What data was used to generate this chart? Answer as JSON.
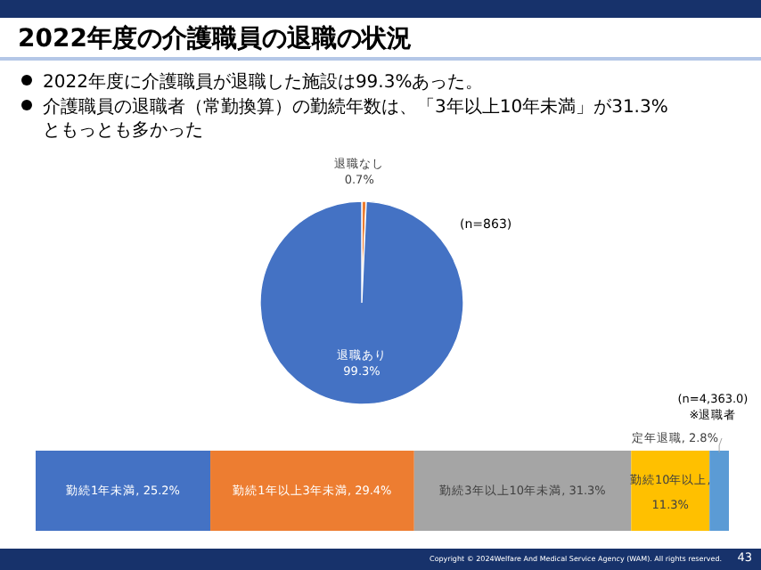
{
  "chart_data": [
    {
      "type": "pie",
      "title": "2022年度の介護職員の退職の状況",
      "categories": [
        "退職なし",
        "退職あり"
      ],
      "values": [
        0.7,
        99.3
      ],
      "colors": [
        "#ed7d31",
        "#4472c4"
      ],
      "value_labels": [
        "0.7%",
        "99.3%"
      ],
      "data_labels": true,
      "annotations": [
        "2022年度に介護職員が退職した施設は99.3%あった。",
        "介護職員の退職者（常勤換算）の勤続年数は、「3年以上10年未満」が31.3%ともっとも多かった",
        "(n=863)"
      ]
    },
    {
      "type": "bar",
      "orientation": "horizontal",
      "stacked": true,
      "categories": [
        null
      ],
      "data_labels": true,
      "series": [
        {
          "name": "勤続1年未満,",
          "color": "#4472c4",
          "values": [
            25.2
          ],
          "value_labels": [
            "25.2%"
          ]
        },
        {
          "name": "勤続1年以上3年未満,",
          "color": "#ed7d31",
          "values": [
            29.4
          ],
          "value_labels": [
            "29.4%"
          ]
        },
        {
          "name": "勤続3年以上10年未満,",
          "color": "#a5a5a5",
          "values": [
            31.3
          ],
          "value_labels": [
            "31.3%"
          ]
        },
        {
          "name": "勤続10年以上,",
          "color": "#ffc000",
          "values": [
            11.3
          ],
          "value_labels": [
            "11.3%"
          ]
        },
        {
          "name": "定年退職,",
          "color": "#5b9bd5",
          "values": [
            2.8
          ],
          "value_labels": [
            "2.8%"
          ]
        }
      ],
      "annotations": [
        "(n=4,363.0)",
        "※退職者",
        "Copyright © 2024Welfare And Medical Service Agency (WAM). All rights reserved.",
        "43"
      ]
    }
  ]
}
